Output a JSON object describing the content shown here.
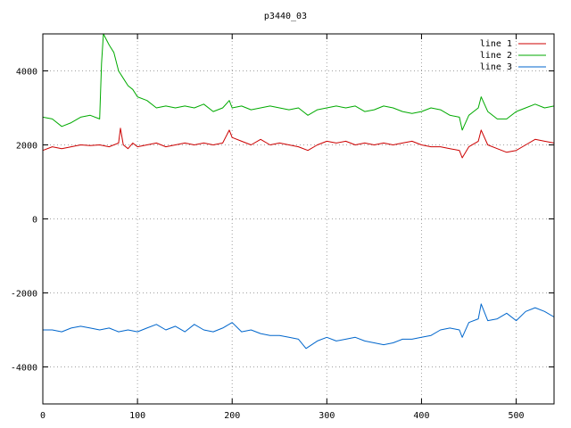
{
  "chart_data": {
    "type": "line",
    "title": "p3440_03",
    "xlabel": "",
    "ylabel": "",
    "xlim": [
      0,
      540
    ],
    "ylim": [
      -5000,
      5000
    ],
    "xticks": [
      0,
      100,
      200,
      300,
      400,
      500
    ],
    "yticks": [
      -4000,
      -2000,
      0,
      2000,
      4000
    ],
    "xtick_labels": [
      "0",
      "100",
      "200",
      "300",
      "400",
      "500"
    ],
    "ytick_labels": [
      "-4000",
      "-2000",
      "0",
      "2000",
      "4000"
    ],
    "grid": true,
    "legend_position": "top-right",
    "series": [
      {
        "name": "line 1",
        "color": "#cc0000",
        "x": [
          0,
          10,
          20,
          30,
          40,
          50,
          60,
          70,
          80,
          82,
          85,
          90,
          95,
          100,
          110,
          120,
          130,
          140,
          150,
          160,
          170,
          180,
          190,
          197,
          200,
          210,
          220,
          230,
          240,
          250,
          260,
          270,
          280,
          290,
          300,
          310,
          320,
          330,
          340,
          350,
          360,
          370,
          380,
          390,
          400,
          410,
          420,
          430,
          440,
          443,
          450,
          460,
          463,
          470,
          480,
          490,
          500,
          510,
          520,
          530,
          540
        ],
        "y": [
          1850,
          1950,
          1900,
          1950,
          2000,
          1980,
          2000,
          1950,
          2050,
          2450,
          2000,
          1900,
          2050,
          1950,
          2000,
          2050,
          1950,
          2000,
          2050,
          2000,
          2050,
          2000,
          2050,
          2400,
          2200,
          2100,
          2000,
          2150,
          2000,
          2050,
          2000,
          1950,
          1850,
          2000,
          2100,
          2050,
          2100,
          2000,
          2050,
          2000,
          2050,
          2000,
          2050,
          2100,
          2000,
          1950,
          1950,
          1900,
          1850,
          1650,
          1950,
          2100,
          2400,
          2000,
          1900,
          1800,
          1850,
          2000,
          2150,
          2100,
          2050
        ]
      },
      {
        "name": "line 2",
        "color": "#00aa00",
        "x": [
          0,
          10,
          20,
          30,
          40,
          50,
          60,
          62,
          64,
          66,
          70,
          75,
          80,
          85,
          90,
          95,
          100,
          110,
          120,
          130,
          140,
          150,
          160,
          170,
          180,
          190,
          197,
          200,
          210,
          220,
          230,
          240,
          250,
          260,
          270,
          280,
          290,
          300,
          310,
          320,
          330,
          340,
          350,
          360,
          370,
          380,
          390,
          400,
          410,
          420,
          430,
          440,
          443,
          450,
          460,
          463,
          470,
          480,
          490,
          500,
          510,
          520,
          530,
          540
        ],
        "y": [
          2750,
          2700,
          2500,
          2600,
          2750,
          2800,
          2700,
          4200,
          5000,
          4900,
          4700,
          4500,
          4000,
          3800,
          3600,
          3500,
          3300,
          3200,
          3000,
          3050,
          3000,
          3050,
          3000,
          3100,
          2900,
          3000,
          3200,
          3000,
          3050,
          2950,
          3000,
          3050,
          3000,
          2950,
          3000,
          2800,
          2950,
          3000,
          3050,
          3000,
          3050,
          2900,
          2950,
          3050,
          3000,
          2900,
          2850,
          2900,
          3000,
          2950,
          2800,
          2750,
          2400,
          2800,
          3000,
          3300,
          2900,
          2700,
          2700,
          2900,
          3000,
          3100,
          3000,
          3050
        ]
      },
      {
        "name": "line 3",
        "color": "#0066cc",
        "x": [
          0,
          10,
          20,
          30,
          40,
          50,
          60,
          70,
          80,
          90,
          100,
          110,
          120,
          130,
          140,
          150,
          160,
          170,
          180,
          190,
          200,
          210,
          220,
          230,
          240,
          250,
          260,
          270,
          278,
          290,
          300,
          310,
          320,
          330,
          340,
          350,
          360,
          370,
          380,
          390,
          400,
          410,
          420,
          430,
          440,
          443,
          450,
          460,
          463,
          470,
          480,
          490,
          500,
          510,
          520,
          530,
          540
        ],
        "y": [
          -3000,
          -3000,
          -3050,
          -2950,
          -2900,
          -2950,
          -3000,
          -2950,
          -3050,
          -3000,
          -3050,
          -2950,
          -2850,
          -3000,
          -2900,
          -3050,
          -2850,
          -3000,
          -3050,
          -2950,
          -2800,
          -3050,
          -3000,
          -3100,
          -3150,
          -3150,
          -3200,
          -3250,
          -3500,
          -3300,
          -3200,
          -3300,
          -3250,
          -3200,
          -3300,
          -3350,
          -3400,
          -3350,
          -3250,
          -3250,
          -3200,
          -3150,
          -3000,
          -2950,
          -3000,
          -3200,
          -2800,
          -2700,
          -2300,
          -2750,
          -2700,
          -2550,
          -2750,
          -2500,
          -2400,
          -2500,
          -2650
        ]
      }
    ]
  }
}
